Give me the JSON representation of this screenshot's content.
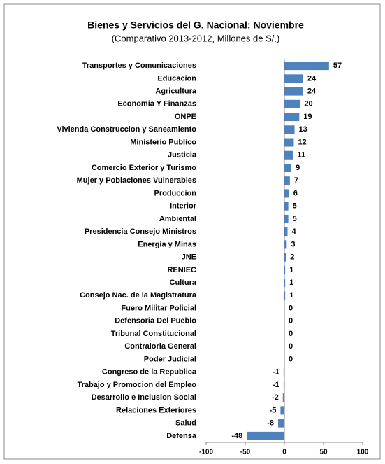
{
  "chart_data": {
    "type": "bar",
    "orientation": "horizontal",
    "title": "Bienes y Servicios del G. Nacional:  Noviembre",
    "subtitle": "(Comparativo 2013-2012, Millones de S/.)",
    "categories": [
      "Transportes y Comunicaciones",
      "Educacion",
      "Agricultura",
      "Economia Y Finanzas",
      "ONPE",
      "Vivienda Construccion y Saneamiento",
      "Ministerio Publico",
      "Justicia",
      "Comercio Exterior y Turismo",
      "Mujer y Poblaciones Vulnerables",
      "Produccion",
      "Interior",
      "Ambiental",
      "Presidencia Consejo Ministros",
      "Energia y Minas",
      "JNE",
      "RENIEC",
      "Cultura",
      "Consejo Nac. de la Magistratura",
      "Fuero Militar Policial",
      "Defensoria Del Pueblo",
      "Tribunal Constitucional",
      "Contraloria General",
      "Poder Judicial",
      "Congreso de la Republica",
      "Trabajo y Promocion del Empleo",
      "Desarrollo e Inclusion Social",
      "Relaciones Exteriores",
      "Salud",
      "Defensa"
    ],
    "values": [
      57,
      24,
      24,
      20,
      19,
      13,
      12,
      11,
      9,
      7,
      6,
      5,
      5,
      4,
      3,
      2,
      1,
      1,
      1,
      0,
      0,
      0,
      0,
      0,
      -1,
      -1,
      -2,
      -5,
      -8,
      -48
    ],
    "color": "#4f81bd",
    "xlim": [
      -100,
      100
    ],
    "xticks": [
      -100,
      -50,
      0,
      50,
      100
    ]
  }
}
